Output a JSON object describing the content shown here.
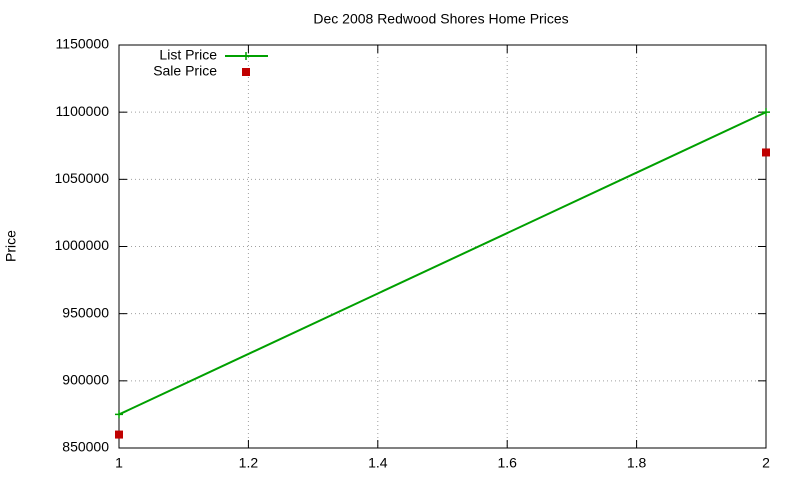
{
  "chart_data": {
    "type": "line",
    "title": "Dec 2008 Redwood Shores Home Prices",
    "y_label": "Price",
    "x": [
      1,
      2
    ],
    "series": [
      {
        "name": "List Price",
        "color": "#00a000",
        "style": "linespoints",
        "values": [
          875000,
          1100000
        ]
      },
      {
        "name": "Sale Price",
        "color": "#c00000",
        "style": "points",
        "values": [
          860000,
          1070000
        ]
      }
    ],
    "xlim": [
      1,
      2
    ],
    "xticks": [
      1,
      1.2,
      1.4,
      1.6,
      1.8,
      2
    ],
    "ylim": [
      850000,
      1150000
    ],
    "yticks": [
      850000,
      900000,
      950000,
      1000000,
      1050000,
      1100000,
      1150000
    ],
    "grid": true,
    "legend": "top-left"
  }
}
